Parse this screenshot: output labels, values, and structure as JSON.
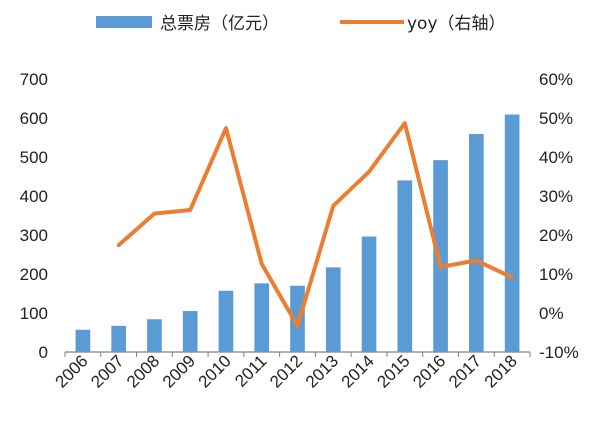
{
  "chart_data": {
    "type": "bar+line",
    "categories": [
      "2006",
      "2007",
      "2008",
      "2009",
      "2010",
      "2011",
      "2012",
      "2013",
      "2014",
      "2015",
      "2016",
      "2017",
      "2018"
    ],
    "series": [
      {
        "name": "总票房（亿元）",
        "type": "bar",
        "axis": "left",
        "color": "#5b9bd5",
        "values": [
          57,
          67,
          84,
          105,
          157,
          176,
          170,
          217,
          296,
          440,
          492,
          559,
          609
        ]
      },
      {
        "name": "yoy（右轴）",
        "type": "line",
        "axis": "right",
        "color": "#ed7d31",
        "values": [
          null,
          17.4,
          25.5,
          26.4,
          47.4,
          12.6,
          -3.3,
          27.5,
          36.2,
          48.7,
          11.8,
          13.5,
          9.1
        ]
      }
    ],
    "left_axis": {
      "ylim": [
        0,
        700
      ],
      "ticks": [
        0,
        100,
        200,
        300,
        400,
        500,
        600,
        700
      ],
      "tick_labels": [
        "0",
        "100",
        "200",
        "300",
        "400",
        "500",
        "600",
        "700"
      ]
    },
    "right_axis": {
      "ylim": [
        -10,
        60
      ],
      "ticks": [
        -10,
        0,
        10,
        20,
        30,
        40,
        50,
        60
      ],
      "tick_labels": [
        "-10%",
        "0%",
        "10%",
        "20%",
        "30%",
        "40%",
        "50%",
        "60%"
      ]
    },
    "grid": false,
    "legend_position": "top"
  }
}
